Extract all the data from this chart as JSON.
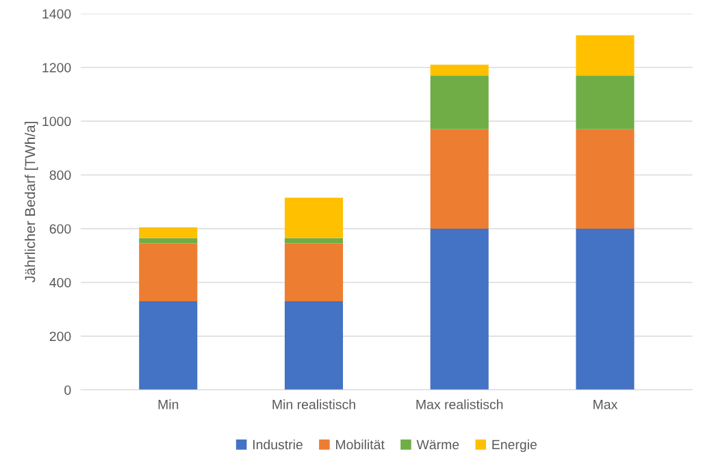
{
  "chart_data": {
    "type": "bar",
    "stacked": true,
    "ylabel": "Jährlicher Bedarf [TWh/a]",
    "categories": [
      "Min",
      "Min realistisch",
      "Max realistisch",
      "Max"
    ],
    "series": [
      {
        "name": "Industrie",
        "color": "#4472c4",
        "values": [
          330,
          330,
          600,
          600
        ]
      },
      {
        "name": "Mobilität",
        "color": "#ed7d31",
        "values": [
          215,
          215,
          370,
          370
        ]
      },
      {
        "name": "Wärme",
        "color": "#70ad47",
        "values": [
          20,
          20,
          200,
          200
        ]
      },
      {
        "name": "Energie",
        "color": "#ffc000",
        "values": [
          40,
          150,
          40,
          150
        ]
      }
    ],
    "ylim": [
      0,
      1400
    ],
    "yticks": [
      0,
      200,
      400,
      600,
      800,
      1000,
      1200,
      1400
    ],
    "grid": "y",
    "legend": "bottom"
  }
}
